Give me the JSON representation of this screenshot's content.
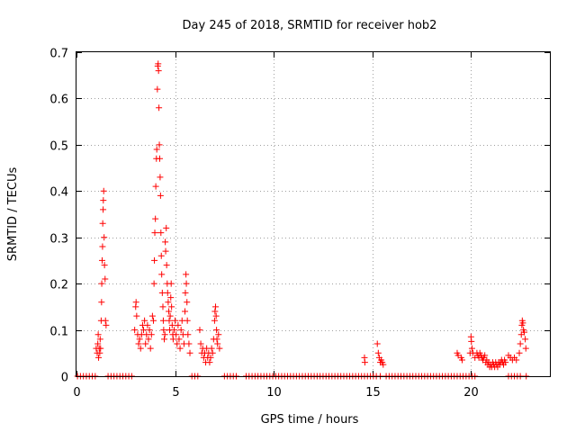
{
  "chart_data": {
    "type": "scatter",
    "title": "Day 245 of 2018, SRMTID for receiver hob2",
    "xlabel": "GPS time / hours",
    "ylabel": "SRMTID / TECUs",
    "xlim": [
      0,
      24
    ],
    "ylim": [
      0,
      0.7
    ],
    "grid": true,
    "marker": "+",
    "marker_color": "#ff0000",
    "x_ticks": [
      0,
      5,
      10,
      15,
      20
    ],
    "x_tick_labels": [
      "0",
      "5",
      "10",
      "15",
      "20"
    ],
    "y_ticks": [
      0,
      0.1,
      0.2,
      0.3,
      0.4,
      0.5,
      0.6,
      0.7
    ],
    "y_tick_labels": [
      "0",
      "0.1",
      "0.2",
      "0.3",
      "0.4",
      "0.5",
      "0.6",
      "0.7"
    ],
    "series": [
      {
        "name": "SRMTID",
        "points": [
          [
            0.05,
            0
          ],
          [
            0.2,
            0
          ],
          [
            0.35,
            0
          ],
          [
            0.5,
            0
          ],
          [
            0.65,
            0
          ],
          [
            0.8,
            0
          ],
          [
            0.95,
            0
          ],
          [
            1.0,
            0.06
          ],
          [
            1.05,
            0.05
          ],
          [
            1.08,
            0.07
          ],
          [
            1.1,
            0.09
          ],
          [
            1.12,
            0.04
          ],
          [
            1.15,
            0.06
          ],
          [
            1.18,
            0.05
          ],
          [
            1.2,
            0.08
          ],
          [
            1.22,
            0.06
          ],
          [
            1.25,
            0.12
          ],
          [
            1.27,
            0.16
          ],
          [
            1.28,
            0.2
          ],
          [
            1.3,
            0.25
          ],
          [
            1.32,
            0.28
          ],
          [
            1.33,
            0.33
          ],
          [
            1.35,
            0.36
          ],
          [
            1.36,
            0.38
          ],
          [
            1.38,
            0.4
          ],
          [
            1.4,
            0.3
          ],
          [
            1.42,
            0.24
          ],
          [
            1.45,
            0.21
          ],
          [
            1.47,
            0.12
          ],
          [
            1.5,
            0.11
          ],
          [
            1.6,
            0
          ],
          [
            1.75,
            0
          ],
          [
            1.9,
            0
          ],
          [
            2.05,
            0
          ],
          [
            2.2,
            0
          ],
          [
            2.35,
            0
          ],
          [
            2.5,
            0
          ],
          [
            2.65,
            0
          ],
          [
            2.8,
            0
          ],
          [
            2.95,
            0.1
          ],
          [
            3.0,
            0.15
          ],
          [
            3.02,
            0.16
          ],
          [
            3.05,
            0.13
          ],
          [
            3.1,
            0.09
          ],
          [
            3.15,
            0.07
          ],
          [
            3.2,
            0.08
          ],
          [
            3.25,
            0.06
          ],
          [
            3.3,
            0.09
          ],
          [
            3.35,
            0.11
          ],
          [
            3.4,
            0.1
          ],
          [
            3.45,
            0.12
          ],
          [
            3.5,
            0.07
          ],
          [
            3.55,
            0.09
          ],
          [
            3.6,
            0.11
          ],
          [
            3.65,
            0.08
          ],
          [
            3.7,
            0.1
          ],
          [
            3.75,
            0.06
          ],
          [
            3.8,
            0.09
          ],
          [
            3.85,
            0.13
          ],
          [
            3.9,
            0.12
          ],
          [
            3.93,
            0.2
          ],
          [
            3.95,
            0.25
          ],
          [
            3.97,
            0.31
          ],
          [
            4.0,
            0.34
          ],
          [
            4.02,
            0.41
          ],
          [
            4.05,
            0.47
          ],
          [
            4.07,
            0.49
          ],
          [
            4.1,
            0.62
          ],
          [
            4.12,
            0.67
          ],
          [
            4.14,
            0.675
          ],
          [
            4.16,
            0.66
          ],
          [
            4.18,
            0.58
          ],
          [
            4.2,
            0.5
          ],
          [
            4.22,
            0.47
          ],
          [
            4.24,
            0.43
          ],
          [
            4.26,
            0.39
          ],
          [
            4.28,
            0.31
          ],
          [
            4.3,
            0.26
          ],
          [
            4.32,
            0.22
          ],
          [
            4.35,
            0.18
          ],
          [
            4.38,
            0.15
          ],
          [
            4.4,
            0.12
          ],
          [
            4.42,
            0.1
          ],
          [
            4.45,
            0.08
          ],
          [
            4.48,
            0.09
          ],
          [
            4.5,
            0.29
          ],
          [
            4.52,
            0.27
          ],
          [
            4.55,
            0.32
          ],
          [
            4.57,
            0.24
          ],
          [
            4.6,
            0.2
          ],
          [
            4.62,
            0.18
          ],
          [
            4.65,
            0.16
          ],
          [
            4.68,
            0.14
          ],
          [
            4.7,
            0.12
          ],
          [
            4.72,
            0.1
          ],
          [
            4.75,
            0.13
          ],
          [
            4.78,
            0.17
          ],
          [
            4.8,
            0.2
          ],
          [
            4.82,
            0.15
          ],
          [
            4.85,
            0.11
          ],
          [
            4.88,
            0.09
          ],
          [
            4.9,
            0.08
          ],
          [
            4.95,
            0.1
          ],
          [
            5.0,
            0.12
          ],
          [
            5.05,
            0.09
          ],
          [
            5.1,
            0.07
          ],
          [
            5.15,
            0.11
          ],
          [
            5.2,
            0.08
          ],
          [
            5.25,
            0.06
          ],
          [
            5.3,
            0.1
          ],
          [
            5.35,
            0.12
          ],
          [
            5.4,
            0.09
          ],
          [
            5.45,
            0.07
          ],
          [
            5.5,
            0.14
          ],
          [
            5.52,
            0.18
          ],
          [
            5.55,
            0.22
          ],
          [
            5.57,
            0.2
          ],
          [
            5.6,
            0.16
          ],
          [
            5.62,
            0.12
          ],
          [
            5.65,
            0.09
          ],
          [
            5.7,
            0.07
          ],
          [
            5.75,
            0.05
          ],
          [
            5.85,
            0
          ],
          [
            6.0,
            0
          ],
          [
            6.15,
            0
          ],
          [
            6.25,
            0.1
          ],
          [
            6.3,
            0.07
          ],
          [
            6.35,
            0.05
          ],
          [
            6.4,
            0.06
          ],
          [
            6.45,
            0.04
          ],
          [
            6.5,
            0.05
          ],
          [
            6.55,
            0.03
          ],
          [
            6.6,
            0.06
          ],
          [
            6.65,
            0.04
          ],
          [
            6.7,
            0.05
          ],
          [
            6.75,
            0.03
          ],
          [
            6.8,
            0.04
          ],
          [
            6.85,
            0.06
          ],
          [
            6.9,
            0.05
          ],
          [
            6.95,
            0.08
          ],
          [
            7.0,
            0.12
          ],
          [
            7.02,
            0.14
          ],
          [
            7.05,
            0.15
          ],
          [
            7.08,
            0.13
          ],
          [
            7.1,
            0.1
          ],
          [
            7.12,
            0.08
          ],
          [
            7.15,
            0.07
          ],
          [
            7.2,
            0.09
          ],
          [
            7.25,
            0.06
          ],
          [
            7.5,
            0
          ],
          [
            7.65,
            0
          ],
          [
            7.8,
            0
          ],
          [
            7.95,
            0
          ],
          [
            8.1,
            0
          ],
          [
            8.6,
            0
          ],
          [
            8.75,
            0
          ],
          [
            8.9,
            0
          ],
          [
            9.05,
            0
          ],
          [
            9.2,
            0
          ],
          [
            9.35,
            0
          ],
          [
            9.5,
            0
          ],
          [
            9.65,
            0
          ],
          [
            9.8,
            0
          ],
          [
            9.95,
            0
          ],
          [
            10.1,
            0
          ],
          [
            10.25,
            0
          ],
          [
            10.4,
            0
          ],
          [
            10.55,
            0
          ],
          [
            10.7,
            0
          ],
          [
            10.85,
            0
          ],
          [
            11.0,
            0
          ],
          [
            11.15,
            0
          ],
          [
            11.3,
            0
          ],
          [
            11.45,
            0
          ],
          [
            11.6,
            0
          ],
          [
            11.75,
            0
          ],
          [
            11.9,
            0
          ],
          [
            12.05,
            0
          ],
          [
            12.2,
            0
          ],
          [
            12.35,
            0
          ],
          [
            12.5,
            0
          ],
          [
            12.65,
            0
          ],
          [
            12.8,
            0
          ],
          [
            12.95,
            0
          ],
          [
            13.1,
            0
          ],
          [
            13.25,
            0
          ],
          [
            13.4,
            0
          ],
          [
            13.55,
            0
          ],
          [
            13.7,
            0
          ],
          [
            13.85,
            0
          ],
          [
            14.0,
            0
          ],
          [
            14.15,
            0
          ],
          [
            14.3,
            0
          ],
          [
            14.45,
            0
          ],
          [
            14.6,
            0
          ],
          [
            14.75,
            0
          ],
          [
            14.9,
            0
          ],
          [
            15.05,
            0
          ],
          [
            15.2,
            0
          ],
          [
            15.4,
            0
          ],
          [
            14.6,
            0.04
          ],
          [
            14.62,
            0.03
          ],
          [
            15.25,
            0.07
          ],
          [
            15.3,
            0.05
          ],
          [
            15.35,
            0.04
          ],
          [
            15.4,
            0.03
          ],
          [
            15.45,
            0.035
          ],
          [
            15.5,
            0.03
          ],
          [
            15.55,
            0.025
          ],
          [
            15.7,
            0
          ],
          [
            15.85,
            0
          ],
          [
            16.0,
            0
          ],
          [
            16.15,
            0
          ],
          [
            16.3,
            0
          ],
          [
            16.45,
            0
          ],
          [
            16.6,
            0
          ],
          [
            16.75,
            0
          ],
          [
            16.9,
            0
          ],
          [
            17.05,
            0
          ],
          [
            17.2,
            0
          ],
          [
            17.35,
            0
          ],
          [
            17.5,
            0
          ],
          [
            17.65,
            0
          ],
          [
            17.8,
            0
          ],
          [
            17.95,
            0
          ],
          [
            18.1,
            0
          ],
          [
            18.25,
            0
          ],
          [
            18.4,
            0
          ],
          [
            18.55,
            0
          ],
          [
            18.7,
            0
          ],
          [
            18.85,
            0
          ],
          [
            19.0,
            0
          ],
          [
            19.15,
            0
          ],
          [
            19.3,
            0
          ],
          [
            19.45,
            0
          ],
          [
            19.6,
            0
          ],
          [
            19.75,
            0
          ],
          [
            19.9,
            0
          ],
          [
            20.05,
            0
          ],
          [
            20.2,
            0
          ],
          [
            19.3,
            0.05
          ],
          [
            19.35,
            0.045
          ],
          [
            19.5,
            0.04
          ],
          [
            19.55,
            0.035
          ],
          [
            19.95,
            0.05
          ],
          [
            20.0,
            0.085
          ],
          [
            20.02,
            0.075
          ],
          [
            20.05,
            0.06
          ],
          [
            20.1,
            0.05
          ],
          [
            20.2,
            0.04
          ],
          [
            20.3,
            0.05
          ],
          [
            20.35,
            0.045
          ],
          [
            20.4,
            0.04
          ],
          [
            20.45,
            0.05
          ],
          [
            20.5,
            0.045
          ],
          [
            20.55,
            0.04
          ],
          [
            20.6,
            0.035
          ],
          [
            20.65,
            0.04
          ],
          [
            20.7,
            0.045
          ],
          [
            20.75,
            0.03
          ],
          [
            20.8,
            0.035
          ],
          [
            20.85,
            0.025
          ],
          [
            20.9,
            0.03
          ],
          [
            20.95,
            0.02
          ],
          [
            21.0,
            0.025
          ],
          [
            21.05,
            0.02
          ],
          [
            21.1,
            0.03
          ],
          [
            21.15,
            0.025
          ],
          [
            21.2,
            0.02
          ],
          [
            21.25,
            0.03
          ],
          [
            21.3,
            0.025
          ],
          [
            21.35,
            0.02
          ],
          [
            21.4,
            0.03
          ],
          [
            21.45,
            0.025
          ],
          [
            21.5,
            0.03
          ],
          [
            21.55,
            0.035
          ],
          [
            21.6,
            0.03
          ],
          [
            21.65,
            0.025
          ],
          [
            21.7,
            0.035
          ],
          [
            21.75,
            0.03
          ],
          [
            21.9,
            0.045
          ],
          [
            22.0,
            0.04
          ],
          [
            22.1,
            0.035
          ],
          [
            22.2,
            0.04
          ],
          [
            22.3,
            0.035
          ],
          [
            22.45,
            0.05
          ],
          [
            22.5,
            0.07
          ],
          [
            22.55,
            0.09
          ],
          [
            22.58,
            0.11
          ],
          [
            22.6,
            0.12
          ],
          [
            22.63,
            0.115
          ],
          [
            22.66,
            0.1
          ],
          [
            22.7,
            0.095
          ],
          [
            22.75,
            0.08
          ],
          [
            22.78,
            0.06
          ],
          [
            21.9,
            0
          ],
          [
            22.05,
            0
          ],
          [
            22.2,
            0
          ],
          [
            22.35,
            0
          ],
          [
            22.5,
            0
          ],
          [
            22.8,
            0
          ]
        ]
      }
    ]
  }
}
